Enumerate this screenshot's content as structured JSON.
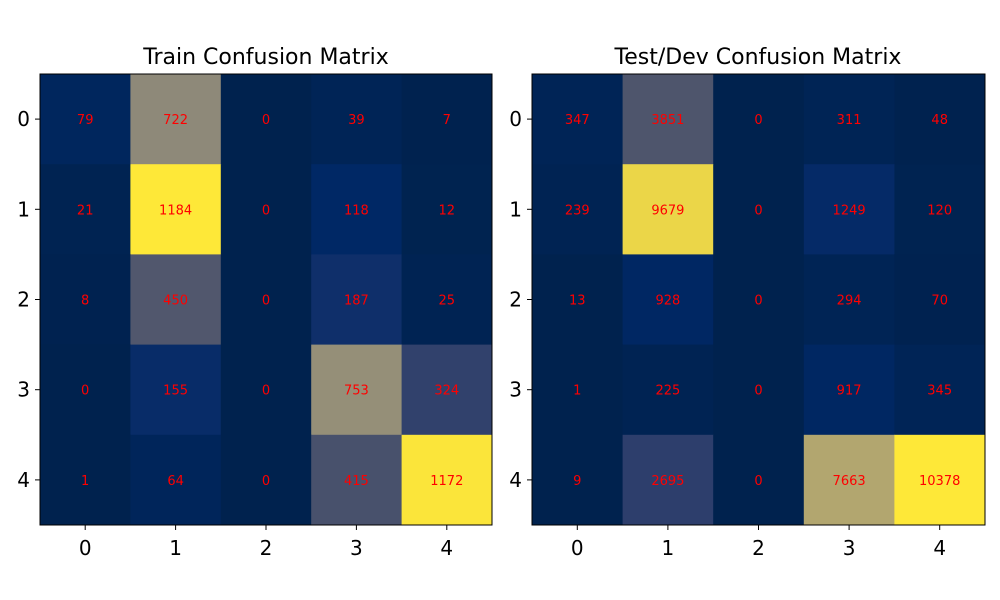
{
  "chart_data": [
    {
      "type": "heatmap",
      "title": "Train Confusion Matrix",
      "x_categories": [
        "0",
        "1",
        "2",
        "3",
        "4"
      ],
      "y_categories": [
        "0",
        "1",
        "2",
        "3",
        "4"
      ],
      "values": [
        [
          79,
          722,
          0,
          39,
          7
        ],
        [
          21,
          1184,
          0,
          118,
          12
        ],
        [
          8,
          450,
          0,
          187,
          25
        ],
        [
          0,
          155,
          0,
          753,
          324
        ],
        [
          1,
          64,
          0,
          415,
          1172
        ]
      ],
      "colormap": "cividis",
      "annotation_color": "#ff0000",
      "grid": false
    },
    {
      "type": "heatmap",
      "title": "Test/Dev Confusion Matrix",
      "x_categories": [
        "0",
        "1",
        "2",
        "3",
        "4"
      ],
      "y_categories": [
        "0",
        "1",
        "2",
        "3",
        "4"
      ],
      "values": [
        [
          347,
          3851,
          0,
          311,
          48
        ],
        [
          239,
          9679,
          0,
          1249,
          120
        ],
        [
          13,
          928,
          0,
          294,
          70
        ],
        [
          1,
          225,
          0,
          917,
          345
        ],
        [
          9,
          2695,
          0,
          7663,
          10378
        ]
      ],
      "colormap": "cividis",
      "annotation_color": "#ff0000",
      "grid": false
    }
  ]
}
